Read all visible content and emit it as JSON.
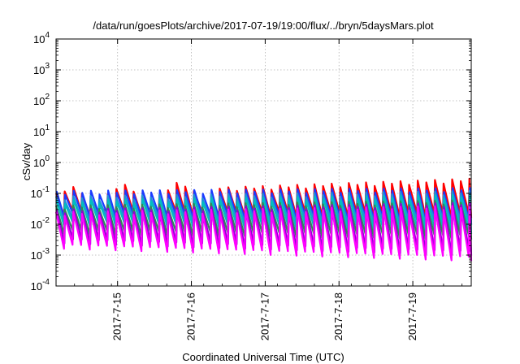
{
  "chart_data": {
    "type": "line",
    "title": "/data/run/goesPlots/archive/2017-07-19/19:00/flux/../bryn/5daysMars.plot",
    "xlabel": "Coordinated Universal Time (UTC)",
    "ylabel": "cSv/day",
    "yscale": "log",
    "ylim": [
      0.0001,
      10000
    ],
    "xlim": [
      "2017-07-14 04:00",
      "2017-07-19 19:00"
    ],
    "x_ticks": [
      "2017-7-15",
      "2017-7-16",
      "2017-7-17",
      "2017-7-18",
      "2017-7-19"
    ],
    "y_ticks": [
      {
        "base": "10",
        "exp": "-4"
      },
      {
        "base": "10",
        "exp": "-3"
      },
      {
        "base": "10",
        "exp": "-2"
      },
      {
        "base": "10",
        "exp": "-1"
      },
      {
        "base": "10",
        "exp": "0"
      },
      {
        "base": "10",
        "exp": "1"
      },
      {
        "base": "10",
        "exp": "2"
      },
      {
        "base": "10",
        "exp": "3"
      },
      {
        "base": "10",
        "exp": "4"
      }
    ],
    "grid": true,
    "legend": "none",
    "series": [
      {
        "color": "#ff0000",
        "cycle_hours": 2.8,
        "peak_range": [
          0.1,
          0.3
        ],
        "trough_range": [
          0.025,
          0.02
        ]
      },
      {
        "color": "#1a3bff",
        "cycle_hours": 2.8,
        "peak_range": [
          0.12,
          0.15
        ],
        "trough_range": [
          0.02,
          0.012
        ]
      },
      {
        "color": "#2090d8",
        "cycle_hours": 2.8,
        "peak_range": [
          0.08,
          0.12
        ],
        "trough_range": [
          0.015,
          0.012
        ]
      },
      {
        "color": "#00bfbf",
        "cycle_hours": 2.8,
        "peak_range": [
          0.06,
          0.09
        ],
        "trough_range": [
          0.01,
          0.006
        ]
      },
      {
        "color": "#2e8b57",
        "cycle_hours": 2.8,
        "peak_range": [
          0.04,
          0.06
        ],
        "trough_range": [
          0.006,
          0.004
        ]
      },
      {
        "color": "#9400d3",
        "cycle_hours": 2.8,
        "peak_range": [
          0.03,
          0.05
        ],
        "trough_range": [
          0.003,
          0.0012
        ]
      },
      {
        "color": "#ff00ff",
        "cycle_hours": 2.8,
        "peak_range": [
          0.025,
          0.04
        ],
        "trough_range": [
          0.002,
          0.0008
        ]
      }
    ]
  }
}
